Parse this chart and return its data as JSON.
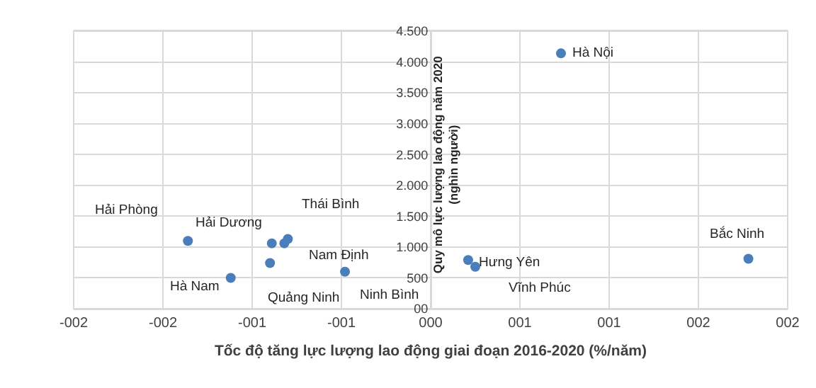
{
  "chart_data": {
    "type": "scatter",
    "xlabel": "Tốc độ tăng lực lượng lao động giai đoạn 2016-2020 (%/năm)",
    "ylabel": "Quy mô lực lượng lao động năm 2020\n(nghìn người)",
    "x": [
      0.73,
      -1.36,
      -0.89,
      -0.8,
      -0.82,
      -1.12,
      -0.9,
      -0.48,
      0.21,
      0.25,
      1.78
    ],
    "series": [
      {
        "color": "#4a7ebb",
        "values": [
          4140,
          1100,
          1060,
          1130,
          1060,
          500,
          740,
          600,
          790,
          680,
          810
        ]
      }
    ],
    "marker": "circle",
    "xlim": [
      -2,
      2
    ],
    "xticks": [
      {
        "value": -2,
        "label": "-002"
      },
      {
        "value": -1.5,
        "label": "-002"
      },
      {
        "value": -1,
        "label": "-001"
      },
      {
        "value": -0.5,
        "label": "-001"
      },
      {
        "value": 0,
        "label": "000"
      },
      {
        "value": 0.5,
        "label": "001"
      },
      {
        "value": 1,
        "label": "001"
      },
      {
        "value": 1.5,
        "label": "002"
      },
      {
        "value": 2,
        "label": "002"
      }
    ],
    "ylim": [
      0,
      4500
    ],
    "yticks": [
      {
        "value": 0,
        "label": "00"
      },
      {
        "value": 500,
        "label": "500"
      },
      {
        "value": 1000,
        "label": "1.000"
      },
      {
        "value": 1500,
        "label": "1.500"
      },
      {
        "value": 2000,
        "label": "2.000"
      },
      {
        "value": 2500,
        "label": "2.500"
      },
      {
        "value": 3000,
        "label": "3.000"
      },
      {
        "value": 3500,
        "label": "3.500"
      },
      {
        "value": 4000,
        "label": "4.000"
      },
      {
        "value": 4500,
        "label": "4.500"
      }
    ],
    "grid": true,
    "annotations": [
      {
        "text": "Hà Nội",
        "x": 0.73,
        "y": 4140
      },
      {
        "text": "Hải Phòng",
        "x": -1.36,
        "y": 1100
      },
      {
        "text": "Hải Dương",
        "x": -0.89,
        "y": 1060
      },
      {
        "text": "Thái Bình",
        "x": -0.8,
        "y": 1130
      },
      {
        "text": "Nam Định",
        "x": -0.82,
        "y": 1060
      },
      {
        "text": "Hà Nam",
        "x": -1.12,
        "y": 500
      },
      {
        "text": "Quảng Ninh",
        "x": -0.9,
        "y": 740
      },
      {
        "text": "Ninh Bình",
        "x": -0.48,
        "y": 600
      },
      {
        "text": "Hưng Yên",
        "x": 0.21,
        "y": 790
      },
      {
        "text": "Vĩnh Phúc",
        "x": 0.25,
        "y": 680
      },
      {
        "text": "Bắc Ninh",
        "x": 1.78,
        "y": 810
      }
    ]
  }
}
